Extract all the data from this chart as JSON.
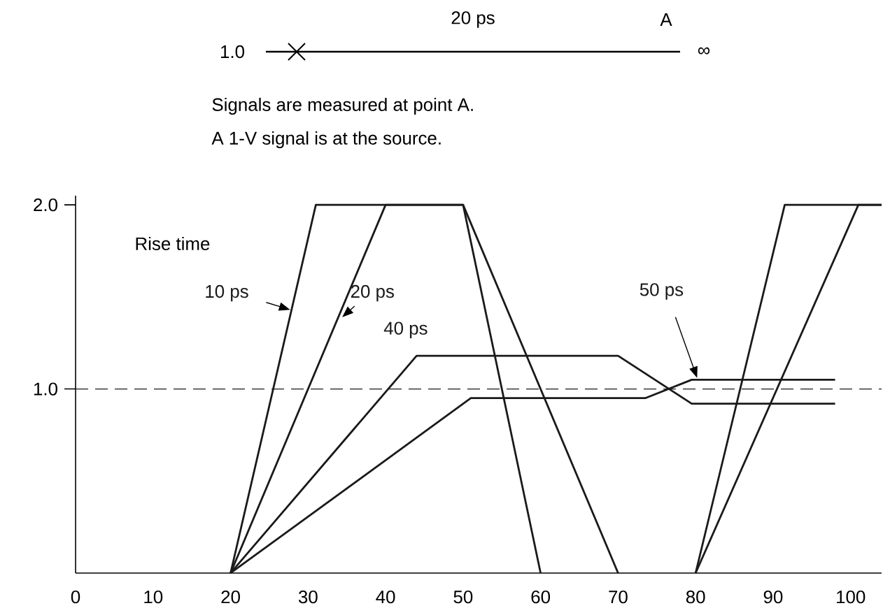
{
  "chart_data": {
    "type": "line",
    "annotations": [
      "1.0",
      "20 ps",
      "A",
      "∞",
      "Signals are measured at point A.",
      "A 1-V signal is at the source.",
      "Rise time"
    ],
    "series": [
      {
        "name": "10 ps",
        "color": "#1a1a1a",
        "x": [
          20,
          31,
          50,
          60
        ],
        "values": [
          0,
          2.0,
          2.0,
          0
        ]
      },
      {
        "name": "20 ps",
        "color": "#1a1a1a",
        "x": [
          20,
          40,
          50,
          70
        ],
        "values": [
          0,
          2.0,
          2.0,
          0
        ]
      },
      {
        "name": "40 ps",
        "color": "#1a1a1a",
        "x": [
          20,
          44,
          70,
          79.5,
          98
        ],
        "values": [
          0,
          1.18,
          1.18,
          0.92,
          0.92
        ]
      },
      {
        "name": "50 ps",
        "color": "#1a1a1a",
        "x": [
          20,
          51,
          73.5,
          79.5,
          98
        ],
        "values": [
          0,
          0.95,
          0.95,
          1.05,
          1.05
        ]
      },
      {
        "color": "#1a1a1a",
        "x": [
          80,
          91.5,
          104
        ],
        "values": [
          0,
          2.0,
          2.0
        ]
      },
      {
        "color": "#1a1a1a",
        "x": [
          80,
          101,
          104
        ],
        "values": [
          0,
          2.0,
          2.0
        ]
      }
    ],
    "xlim": [
      0,
      104
    ],
    "ylim": [
      0,
      2.05
    ],
    "xticks": [
      0,
      10,
      20,
      30,
      40,
      50,
      60,
      70,
      80,
      90,
      100
    ],
    "yticks": [
      {
        "value": 1.0,
        "label": "1.0"
      },
      {
        "value": 2.0,
        "label": "2.0"
      }
    ],
    "ref_lines": [
      {
        "axis": "y",
        "value": 1.0,
        "color": "#1a1a1a",
        "line_style": "dashed"
      }
    ]
  }
}
